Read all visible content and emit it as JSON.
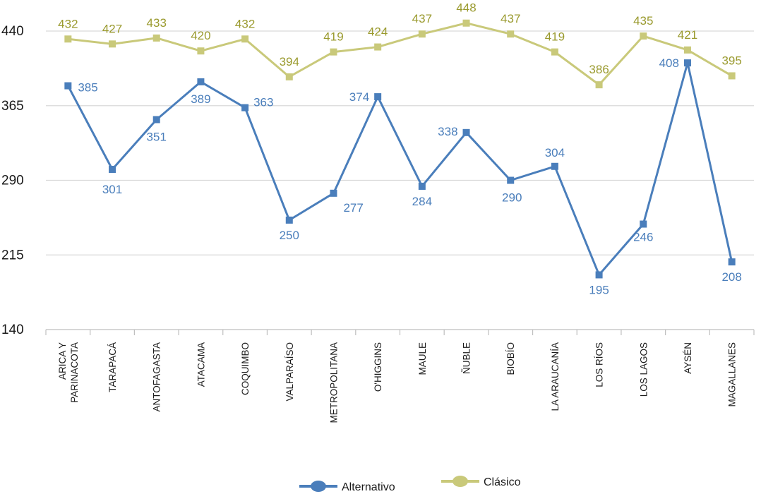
{
  "chart_data": {
    "type": "line",
    "categories": [
      "ARICA Y PARINACOTA",
      "TARAPACÁ",
      "ANTOFAGASTA",
      "ATACAMA",
      "COQUIMBO",
      "VALPARAÍSO",
      "METROPOLITANA",
      "O'HIGGINS",
      "MAULE",
      "ÑUBLE",
      "BIOBÍO",
      "LA ARAUCANÍA",
      "LOS RÍOS",
      "LOS LAGOS",
      "AYSÉN",
      "MAGALLANES"
    ],
    "category_lines": [
      [
        "ARICA Y",
        "PARINACOTA"
      ],
      [
        "TARAPACÁ"
      ],
      [
        "ANTOFAGASTA"
      ],
      [
        "ATACAMA"
      ],
      [
        "COQUIMBO"
      ],
      [
        "VALPARAÍSO"
      ],
      [
        "METROPOLITANA"
      ],
      [
        "O'HIGGINS"
      ],
      [
        "MAULE"
      ],
      [
        "ÑUBLE"
      ],
      [
        "BIOBÍO"
      ],
      [
        "LA ARAUCANÍA"
      ],
      [
        "LOS RÍOS"
      ],
      [
        "LOS LAGOS"
      ],
      [
        "AYSÉN"
      ],
      [
        "MAGALLANES"
      ]
    ],
    "series": [
      {
        "name": "Alternativo",
        "color": "#4a7ebb",
        "values": [
          385,
          301,
          351,
          389,
          363,
          250,
          277,
          374,
          284,
          338,
          290,
          304,
          195,
          246,
          408,
          208
        ]
      },
      {
        "name": "Clásico",
        "color": "#c9c97a",
        "values": [
          432,
          427,
          433,
          420,
          432,
          394,
          419,
          424,
          437,
          448,
          437,
          419,
          386,
          435,
          421,
          395
        ]
      }
    ],
    "label_colors": {
      "Alternativo": "#4a7ebb",
      "Clásico": "#9a9a2e"
    },
    "yticks": [
      140,
      215,
      290,
      365,
      440
    ],
    "ylim": [
      140,
      440
    ],
    "grid": true,
    "legend": "bottom",
    "title": "",
    "xlabel": "",
    "ylabel": ""
  }
}
